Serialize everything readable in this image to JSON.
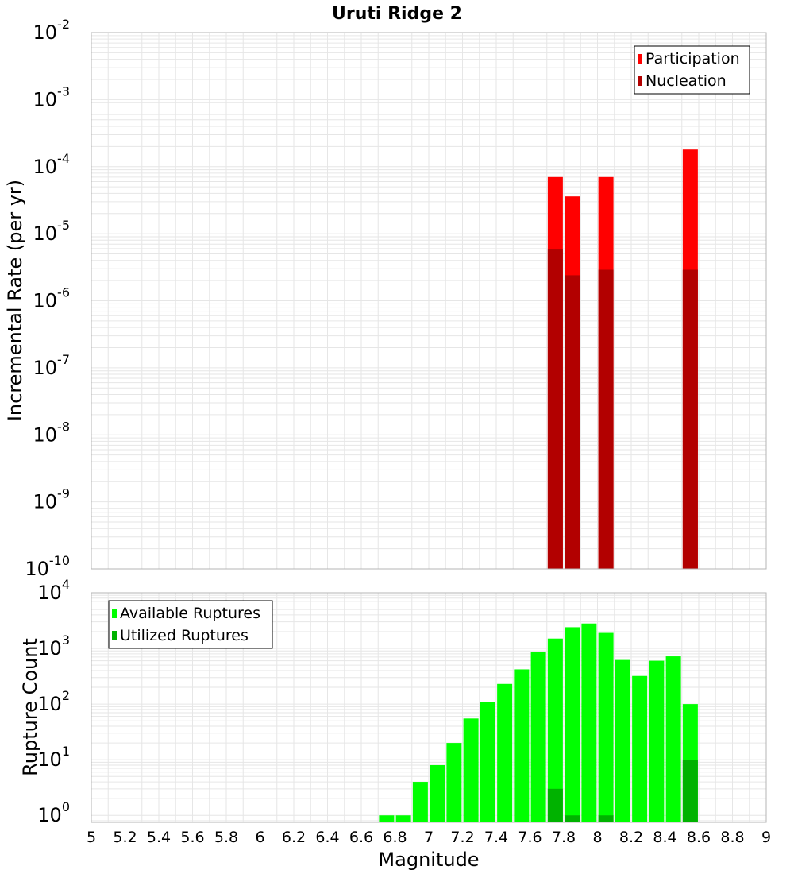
{
  "chart_data": [
    {
      "type": "bar",
      "title": "Uruti Ridge 2",
      "xlabel": "",
      "ylabel": "Incremental Rate (per yr)",
      "yscale": "log",
      "ylim": [
        1e-10,
        0.01
      ],
      "xlim": [
        5,
        9
      ],
      "y_tick_exponents": [
        "-10",
        "-9",
        "-8",
        "-7",
        "-6",
        "-5",
        "-4",
        "-3",
        "-2"
      ],
      "legend_position": "top-right",
      "series": [
        {
          "name": "Participation",
          "color": "#ff0000",
          "x": [
            7.75,
            7.85,
            8.05,
            8.55
          ],
          "values": [
            7e-05,
            3.6e-05,
            7e-05,
            0.00018
          ]
        },
        {
          "name": "Nucleation",
          "color": "#b20000",
          "x": [
            7.75,
            7.85,
            8.05,
            8.55
          ],
          "values": [
            5.8e-06,
            2.4e-06,
            2.9e-06,
            2.9e-06
          ]
        }
      ]
    },
    {
      "type": "bar",
      "title": "",
      "xlabel": "Magnitude",
      "ylabel": "Rupture Count",
      "yscale": "log",
      "ylim": [
        0.75,
        10000
      ],
      "xlim": [
        5,
        9
      ],
      "y_tick_exponents": [
        "0",
        "1",
        "2",
        "3",
        "4"
      ],
      "x_tick_labels": [
        "5",
        "5.2",
        "5.4",
        "5.6",
        "5.8",
        "6",
        "6.2",
        "6.4",
        "6.6",
        "6.8",
        "7",
        "7.2",
        "7.4",
        "7.6",
        "7.8",
        "8",
        "8.2",
        "8.4",
        "8.6",
        "8.8",
        "9"
      ],
      "legend_position": "top-left",
      "series": [
        {
          "name": "Available Ruptures",
          "color": "#00ff00",
          "x": [
            6.75,
            6.85,
            6.95,
            7.05,
            7.15,
            7.25,
            7.35,
            7.45,
            7.55,
            7.65,
            7.75,
            7.85,
            7.95,
            8.05,
            8.15,
            8.25,
            8.35,
            8.45,
            8.55
          ],
          "values": [
            1,
            1,
            4,
            8,
            20,
            55,
            110,
            230,
            420,
            850,
            1500,
            2400,
            2800,
            1900,
            620,
            320,
            600,
            720,
            100
          ]
        },
        {
          "name": "Utilized Ruptures",
          "color": "#00b200",
          "x": [
            7.75,
            7.85,
            8.05,
            8.55
          ],
          "values": [
            3,
            1,
            1,
            10
          ]
        }
      ]
    }
  ]
}
